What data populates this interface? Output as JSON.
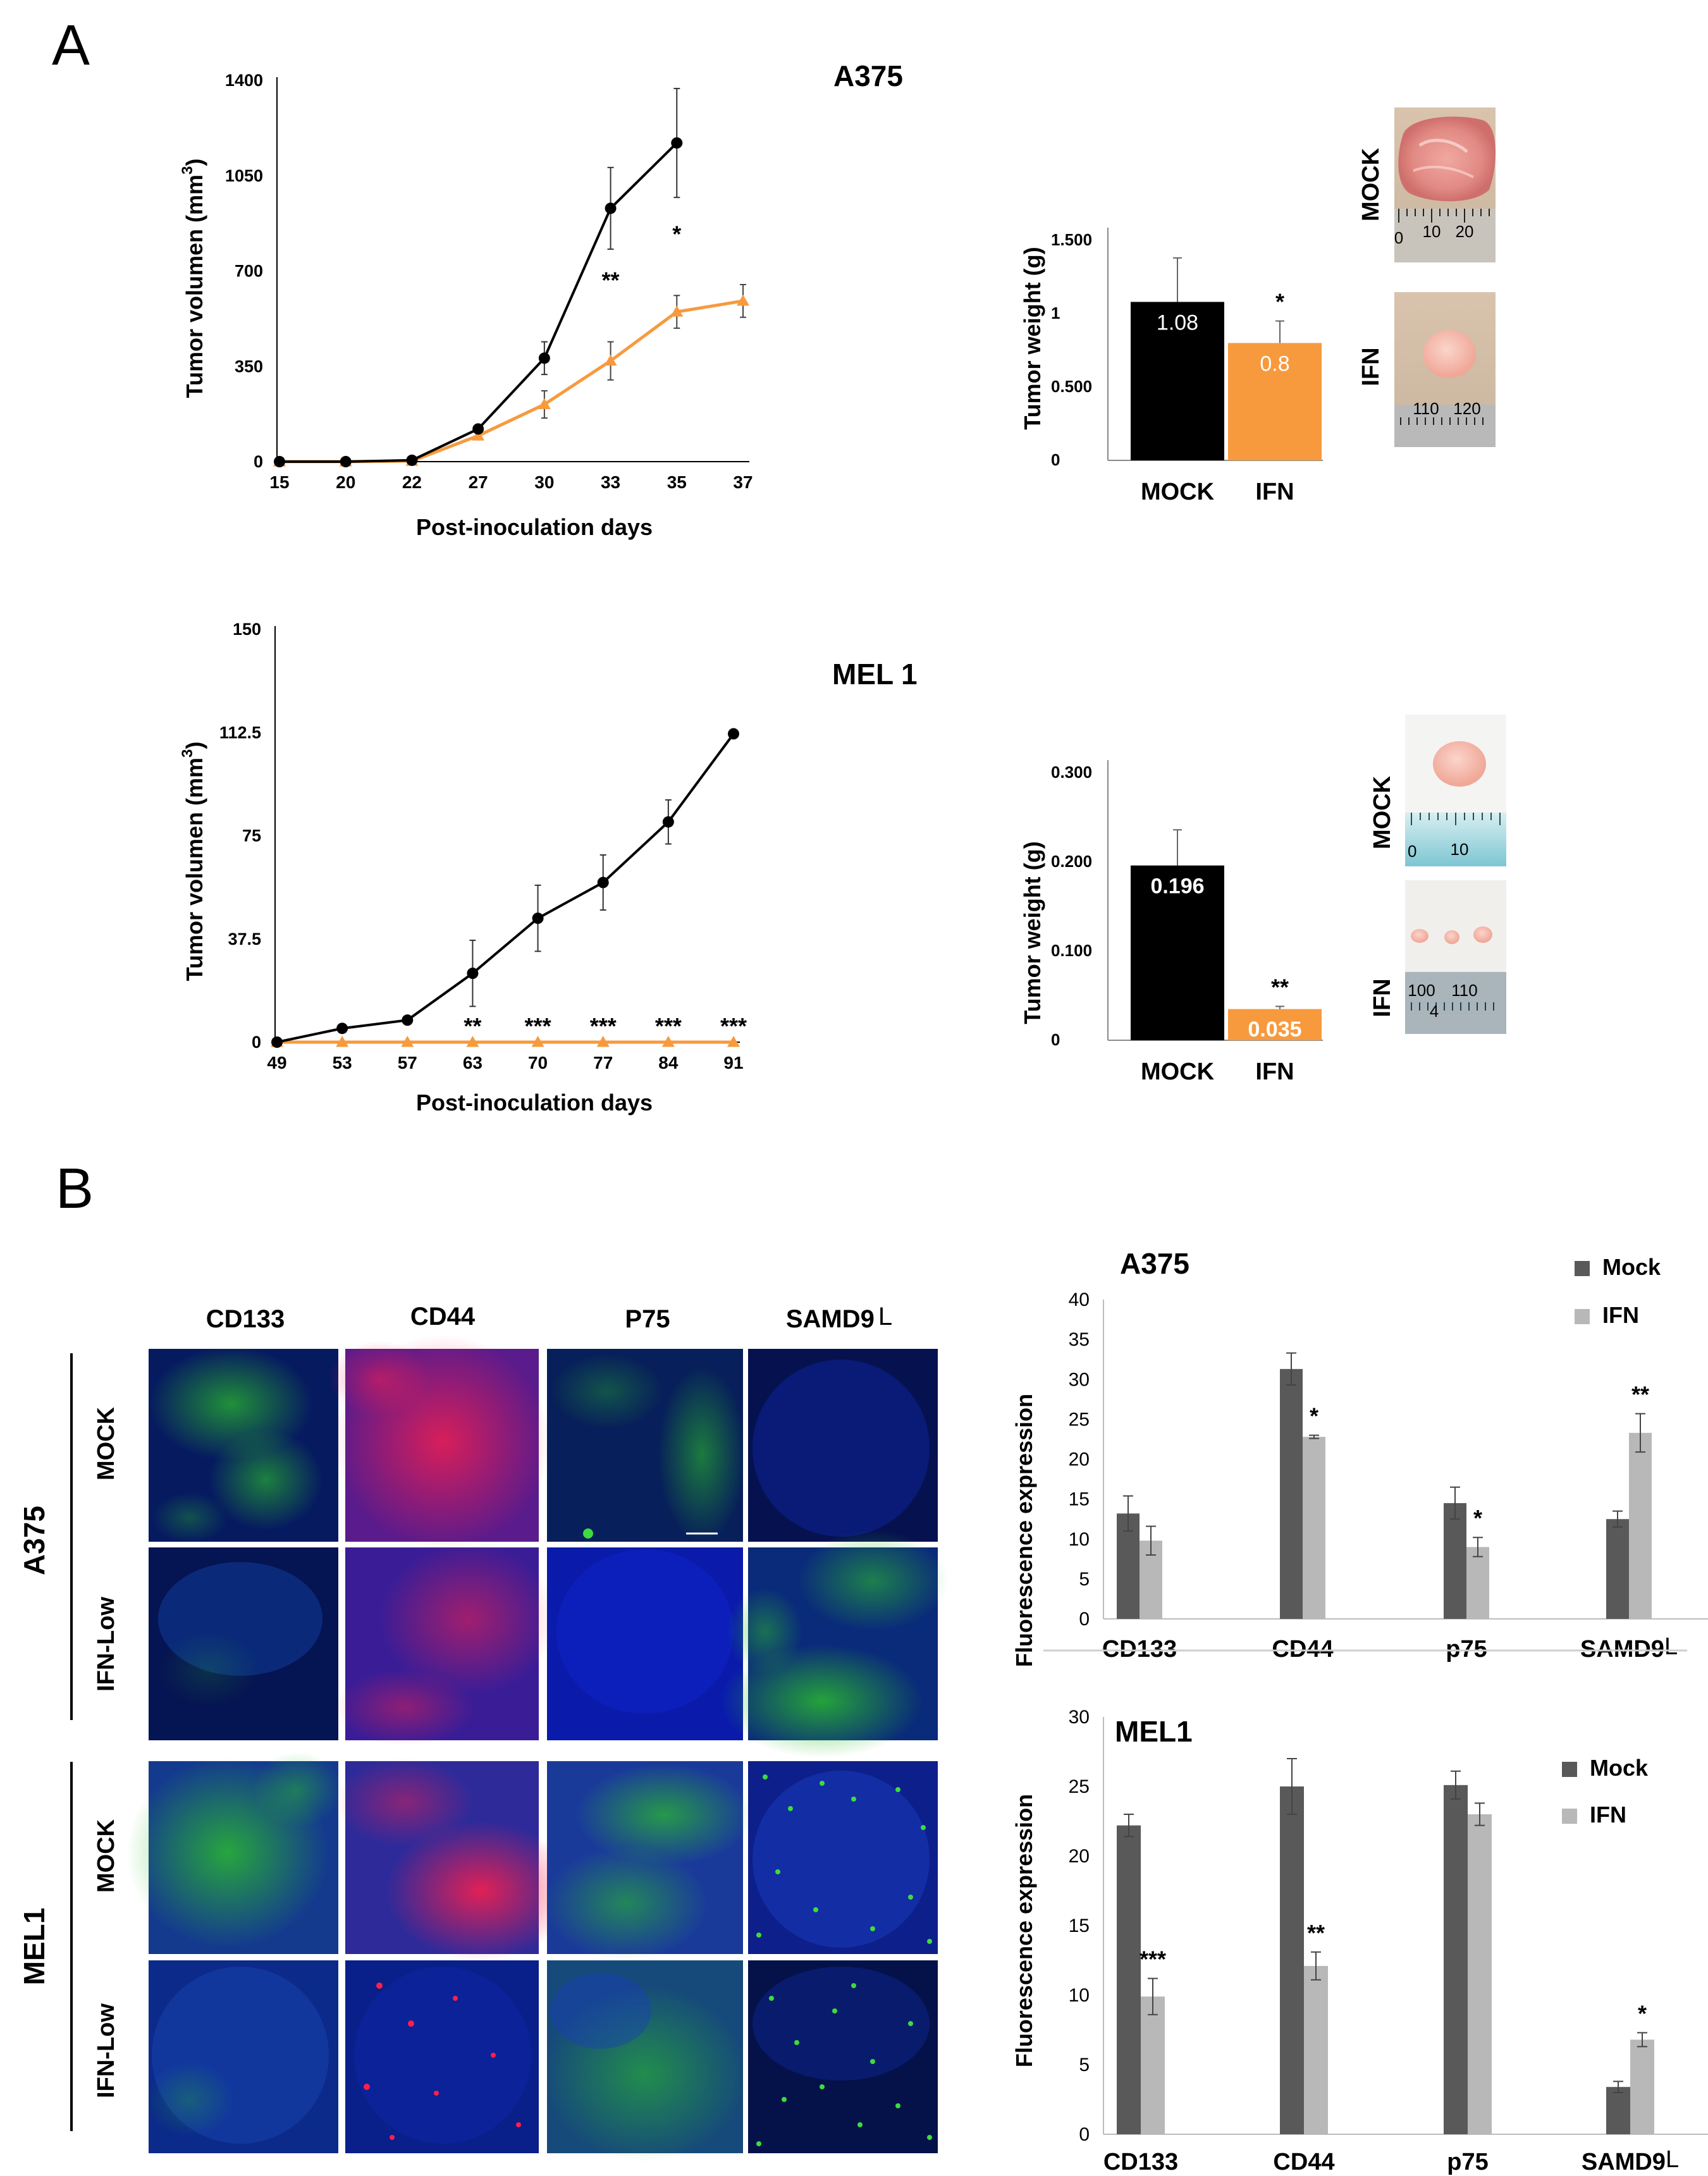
{
  "panels": {
    "a": "A",
    "b": "B"
  },
  "chart_data": [
    {
      "id": "a375_growth",
      "type": "line",
      "title": "A375",
      "xlabel": "Post-inoculation days",
      "ylabel": "Tumor volumen (mm3)",
      "ylabel_main": "Tumor volumen (mm",
      "ylabel_sup": "3",
      "ylabel_close": ")",
      "categories": [
        "15",
        "20",
        "22",
        "27",
        "30",
        "33",
        "35",
        "37"
      ],
      "yticks": [
        "0",
        "350",
        "700",
        "1050",
        "1400"
      ],
      "ylim": [
        0,
        1400
      ],
      "colors": {
        "mock": "#000000",
        "ifn": "#f79a3e"
      },
      "series": [
        {
          "values": [
            0,
            0,
            5,
            120,
            380,
            930,
            1170,
            null
          ],
          "err": [
            0,
            0,
            5,
            15,
            60,
            150,
            200,
            0
          ],
          "marker": "circle"
        },
        {
          "values": [
            0,
            0,
            2,
            95,
            210,
            370,
            550,
            590
          ],
          "err": [
            0,
            0,
            2,
            15,
            50,
            70,
            60,
            60
          ],
          "marker": "triangle"
        }
      ],
      "annotations": [
        {
          "label": "**",
          "index": 5
        },
        {
          "label": "*",
          "index": 6
        }
      ]
    },
    {
      "id": "a375_weight",
      "type": "bar",
      "ylabel": "Tumor weight (g)",
      "categories": [
        "MOCK",
        "IFN"
      ],
      "values": [
        1.08,
        0.8
      ],
      "value_labels": [
        "1.08",
        "0.8"
      ],
      "err": [
        0.3,
        0.15
      ],
      "yticks": [
        "0",
        "0.500",
        "1",
        "1.500"
      ],
      "ylim": [
        0,
        1.5
      ],
      "colors": [
        "#000000",
        "#f79a3e"
      ],
      "annotations": [
        {
          "label": "*",
          "index": 1
        }
      ]
    },
    {
      "id": "mel1_growth",
      "type": "line",
      "title": "MEL 1",
      "xlabel": "Post-inoculation days",
      "ylabel": "Tumor volumen (mm3)",
      "ylabel_main": "Tumor volumen (mm",
      "ylabel_sup": "3",
      "ylabel_close": ")",
      "categories": [
        "49",
        "53",
        "57",
        "63",
        "70",
        "77",
        "84",
        "91"
      ],
      "yticks": [
        "0",
        "37.5",
        "75",
        "112.5",
        "150"
      ],
      "ylim": [
        0,
        150
      ],
      "colors": {
        "mock": "#000000",
        "ifn": "#f79a3e"
      },
      "series": [
        {
          "values": [
            0,
            5,
            8,
            25,
            45,
            58,
            80,
            112
          ],
          "err": [
            0,
            0,
            0,
            12,
            12,
            10,
            8,
            0
          ],
          "marker": "circle"
        },
        {
          "values": [
            0,
            0,
            0,
            0,
            0,
            0,
            0,
            0
          ],
          "err": [
            0,
            0,
            0,
            0,
            0,
            0,
            0,
            0
          ],
          "marker": "triangle"
        }
      ],
      "annotations": [
        {
          "label": "**",
          "index": 3
        },
        {
          "label": "***",
          "index": 4
        },
        {
          "label": "***",
          "index": 5
        },
        {
          "label": "***",
          "index": 6
        },
        {
          "label": "***",
          "index": 7
        }
      ]
    },
    {
      "id": "mel1_weight",
      "type": "bar",
      "ylabel": "Tumor weight (g)",
      "categories": [
        "MOCK",
        "IFN"
      ],
      "values": [
        0.196,
        0.035
      ],
      "value_labels": [
        "0.196",
        "0.035"
      ],
      "err": [
        0.04,
        0.003
      ],
      "yticks": [
        "0",
        "0.100",
        "0.200",
        "0.300"
      ],
      "ylim": [
        0,
        0.3
      ],
      "colors": [
        "#000000",
        "#f79a3e"
      ],
      "annotations": [
        {
          "label": "**",
          "index": 1
        }
      ]
    },
    {
      "id": "a375_fluor",
      "type": "bar",
      "title": "A375",
      "ylabel": "Fluorescence expression",
      "categories": [
        "CD133",
        "CD44",
        "p75",
        "SAMD9L"
      ],
      "category_labels": [
        "CD133",
        "CD44",
        "p75",
        "SAMD9"
      ],
      "last_suffix": "L",
      "yticks": [
        "0",
        "5",
        "10",
        "15",
        "20",
        "25",
        "30",
        "35",
        "40"
      ],
      "ylim": [
        0,
        40
      ],
      "legend": [
        "Mock",
        "IFN"
      ],
      "colors": [
        "#595959",
        "#b8b8b8"
      ],
      "series": [
        {
          "name": "Mock",
          "values": [
            13.2,
            31.3,
            14.5,
            12.5
          ],
          "err": [
            2.2,
            2.0,
            2.0,
            1.0
          ]
        },
        {
          "name": "IFN",
          "values": [
            9.8,
            22.8,
            9.0,
            23.3
          ],
          "err": [
            1.8,
            0.2,
            1.2,
            2.4
          ]
        }
      ],
      "annotations": [
        {
          "label": "*",
          "index": 1
        },
        {
          "label": "*",
          "index": 2
        },
        {
          "label": "**",
          "index": 3
        }
      ]
    },
    {
      "id": "mel1_fluor",
      "type": "bar",
      "title": "MEL1",
      "ylabel": "Fluorescence expression",
      "categories": [
        "CD133",
        "CD44",
        "p75",
        "SAMD9L"
      ],
      "category_labels": [
        "CD133",
        "CD44",
        "p75",
        "SAMD9"
      ],
      "last_suffix": "L",
      "yticks": [
        "0",
        "5",
        "10",
        "15",
        "20",
        "25",
        "30"
      ],
      "ylim": [
        0,
        30
      ],
      "legend": [
        "Mock",
        "IFN"
      ],
      "colors": [
        "#595959",
        "#b8b8b8"
      ],
      "series": [
        {
          "name": "Mock",
          "values": [
            22.2,
            25.0,
            25.1,
            3.4
          ],
          "err": [
            0.8,
            2.0,
            1.0,
            0.4
          ]
        },
        {
          "name": "IFN",
          "values": [
            9.9,
            12.1,
            23.0,
            6.8
          ],
          "err": [
            1.3,
            1.0,
            0.8,
            0.5
          ]
        }
      ],
      "annotations": [
        {
          "label": "***",
          "index": 0
        },
        {
          "label": "**",
          "index": 1
        },
        {
          "label": "*",
          "index": 3
        }
      ]
    }
  ],
  "photo_labels": {
    "mock": "MOCK",
    "ifn": "IFN"
  },
  "ruler_labels": {
    "a375_mock": [
      "0",
      "10",
      "20"
    ],
    "a375_ifn": [
      "110",
      "120"
    ],
    "mel1_mock": [
      "0",
      "10"
    ],
    "mel1_ifn": [
      "100",
      "110",
      "4"
    ]
  },
  "micrograph": {
    "columns": [
      "CD133",
      "CD44",
      "P75",
      "SAMD9"
    ],
    "column_suffix": "L",
    "groups": [
      "A375",
      "MEL1"
    ],
    "rows": [
      "MOCK",
      "IFN-Low"
    ]
  }
}
